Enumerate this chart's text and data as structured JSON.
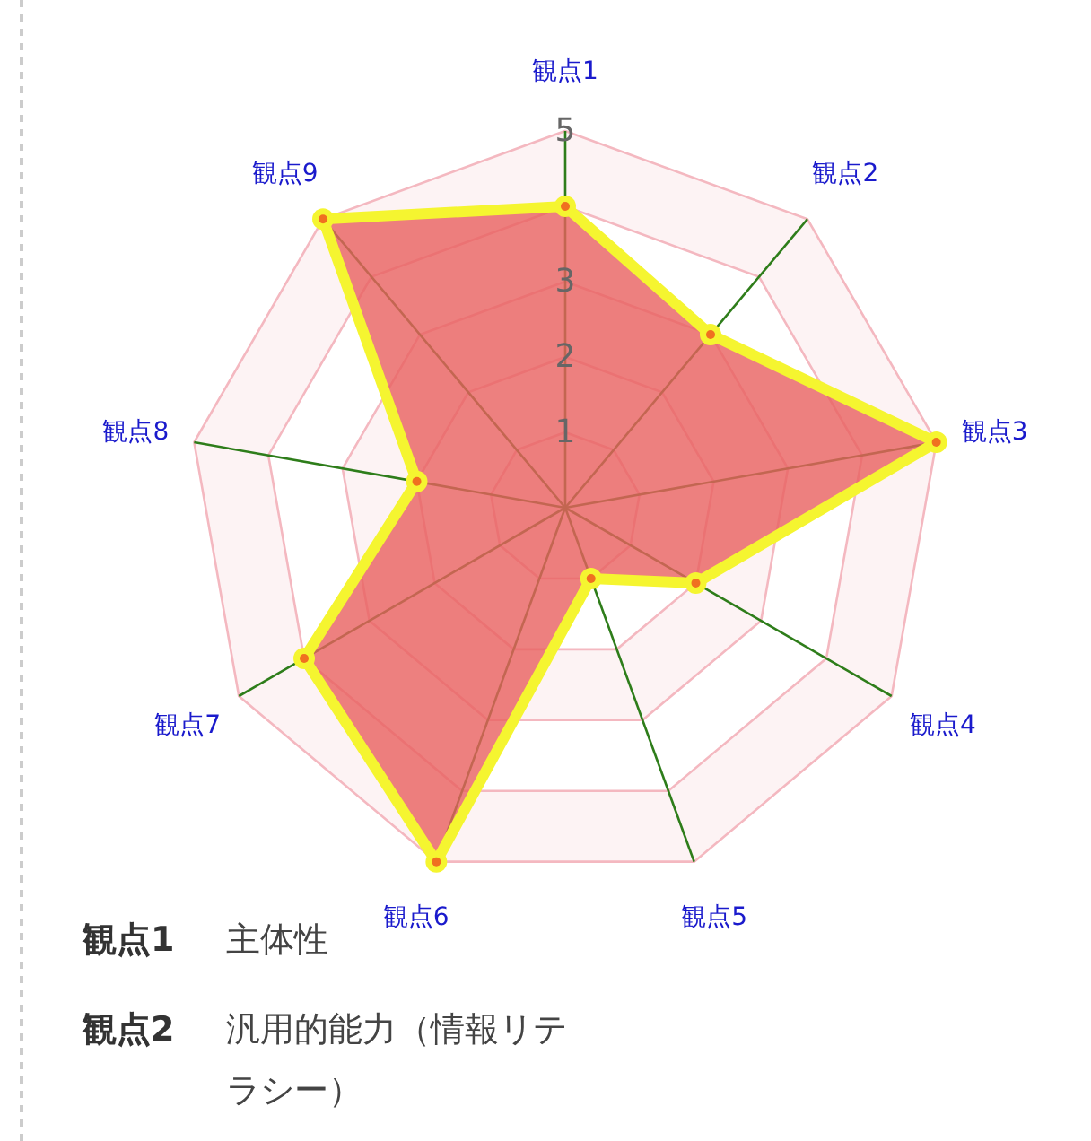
{
  "chart_data": {
    "type": "radar",
    "categories": [
      "観点1",
      "観点2",
      "観点3",
      "観点4",
      "観点5",
      "観点6",
      "観点7",
      "観点8",
      "観点9"
    ],
    "series": [
      {
        "color": "#f5f530",
        "values": [
          4,
          3,
          5,
          2,
          1,
          5,
          4,
          2,
          5
        ]
      }
    ],
    "ylim": [
      0,
      5
    ],
    "yticks": [
      1,
      2,
      3,
      5
    ],
    "marker": "circle",
    "grid": true,
    "annotations": [
      "観点1 主体性",
      "観点2 汎用的能力（情報リテラシー）"
    ]
  }
}
